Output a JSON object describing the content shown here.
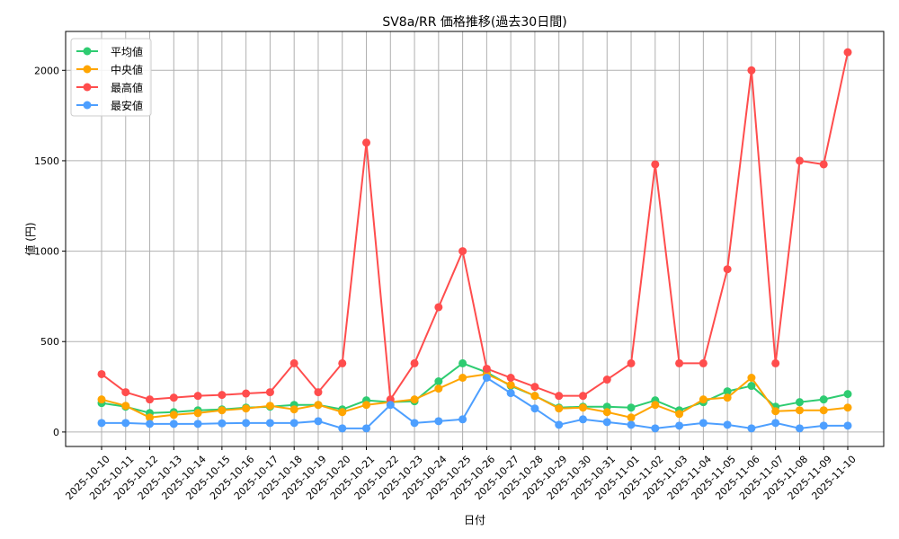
{
  "chart_data": {
    "type": "line",
    "title": "SV8a/RR 価格推移(過去30日間)",
    "xlabel": "日付",
    "ylabel": "値 (円)",
    "ylim": [
      -80,
      2215
    ],
    "yticks": [
      0,
      500,
      1000,
      1500,
      2000
    ],
    "grid": true,
    "legend_position": "top-left",
    "categories": [
      "2025-10-10",
      "2025-10-11",
      "2025-10-12",
      "2025-10-13",
      "2025-10-14",
      "2025-10-15",
      "2025-10-16",
      "2025-10-17",
      "2025-10-18",
      "2025-10-19",
      "2025-10-20",
      "2025-10-21",
      "2025-10-22",
      "2025-10-23",
      "2025-10-24",
      "2025-10-25",
      "2025-10-26",
      "2025-10-27",
      "2025-10-28",
      "2025-10-29",
      "2025-10-30",
      "2025-10-31",
      "2025-11-01",
      "2025-11-02",
      "2025-11-03",
      "2025-11-04",
      "2025-11-05",
      "2025-11-06",
      "2025-11-07",
      "2025-11-08",
      "2025-11-09",
      "2025-11-10"
    ],
    "series": [
      {
        "name": "平均値",
        "color": "#2ecc71",
        "values": [
          160,
          140,
          105,
          110,
          120,
          125,
          135,
          140,
          150,
          150,
          125,
          175,
          165,
          170,
          280,
          380,
          330,
          255,
          200,
          135,
          140,
          140,
          135,
          175,
          120,
          165,
          225,
          255,
          140,
          165,
          180,
          210
        ]
      },
      {
        "name": "中央値",
        "color": "#ffa500",
        "values": [
          180,
          145,
          80,
          95,
          105,
          120,
          130,
          145,
          125,
          150,
          110,
          150,
          165,
          180,
          240,
          300,
          320,
          260,
          200,
          130,
          135,
          110,
          80,
          150,
          100,
          180,
          190,
          300,
          115,
          120,
          120,
          135
        ]
      },
      {
        "name": "最高値",
        "color": "#ff4d4d",
        "values": [
          320,
          220,
          180,
          190,
          200,
          205,
          213,
          220,
          380,
          220,
          380,
          1600,
          180,
          380,
          690,
          1000,
          350,
          300,
          250,
          200,
          200,
          290,
          380,
          1480,
          380,
          380,
          900,
          2000,
          380,
          1500,
          1480,
          2100
        ]
      },
      {
        "name": "最安値",
        "color": "#4d9fff",
        "values": [
          50,
          50,
          45,
          45,
          45,
          48,
          50,
          50,
          50,
          60,
          20,
          20,
          150,
          50,
          60,
          70,
          300,
          215,
          130,
          40,
          70,
          55,
          40,
          20,
          35,
          50,
          40,
          20,
          50,
          20,
          35,
          35
        ]
      }
    ]
  }
}
